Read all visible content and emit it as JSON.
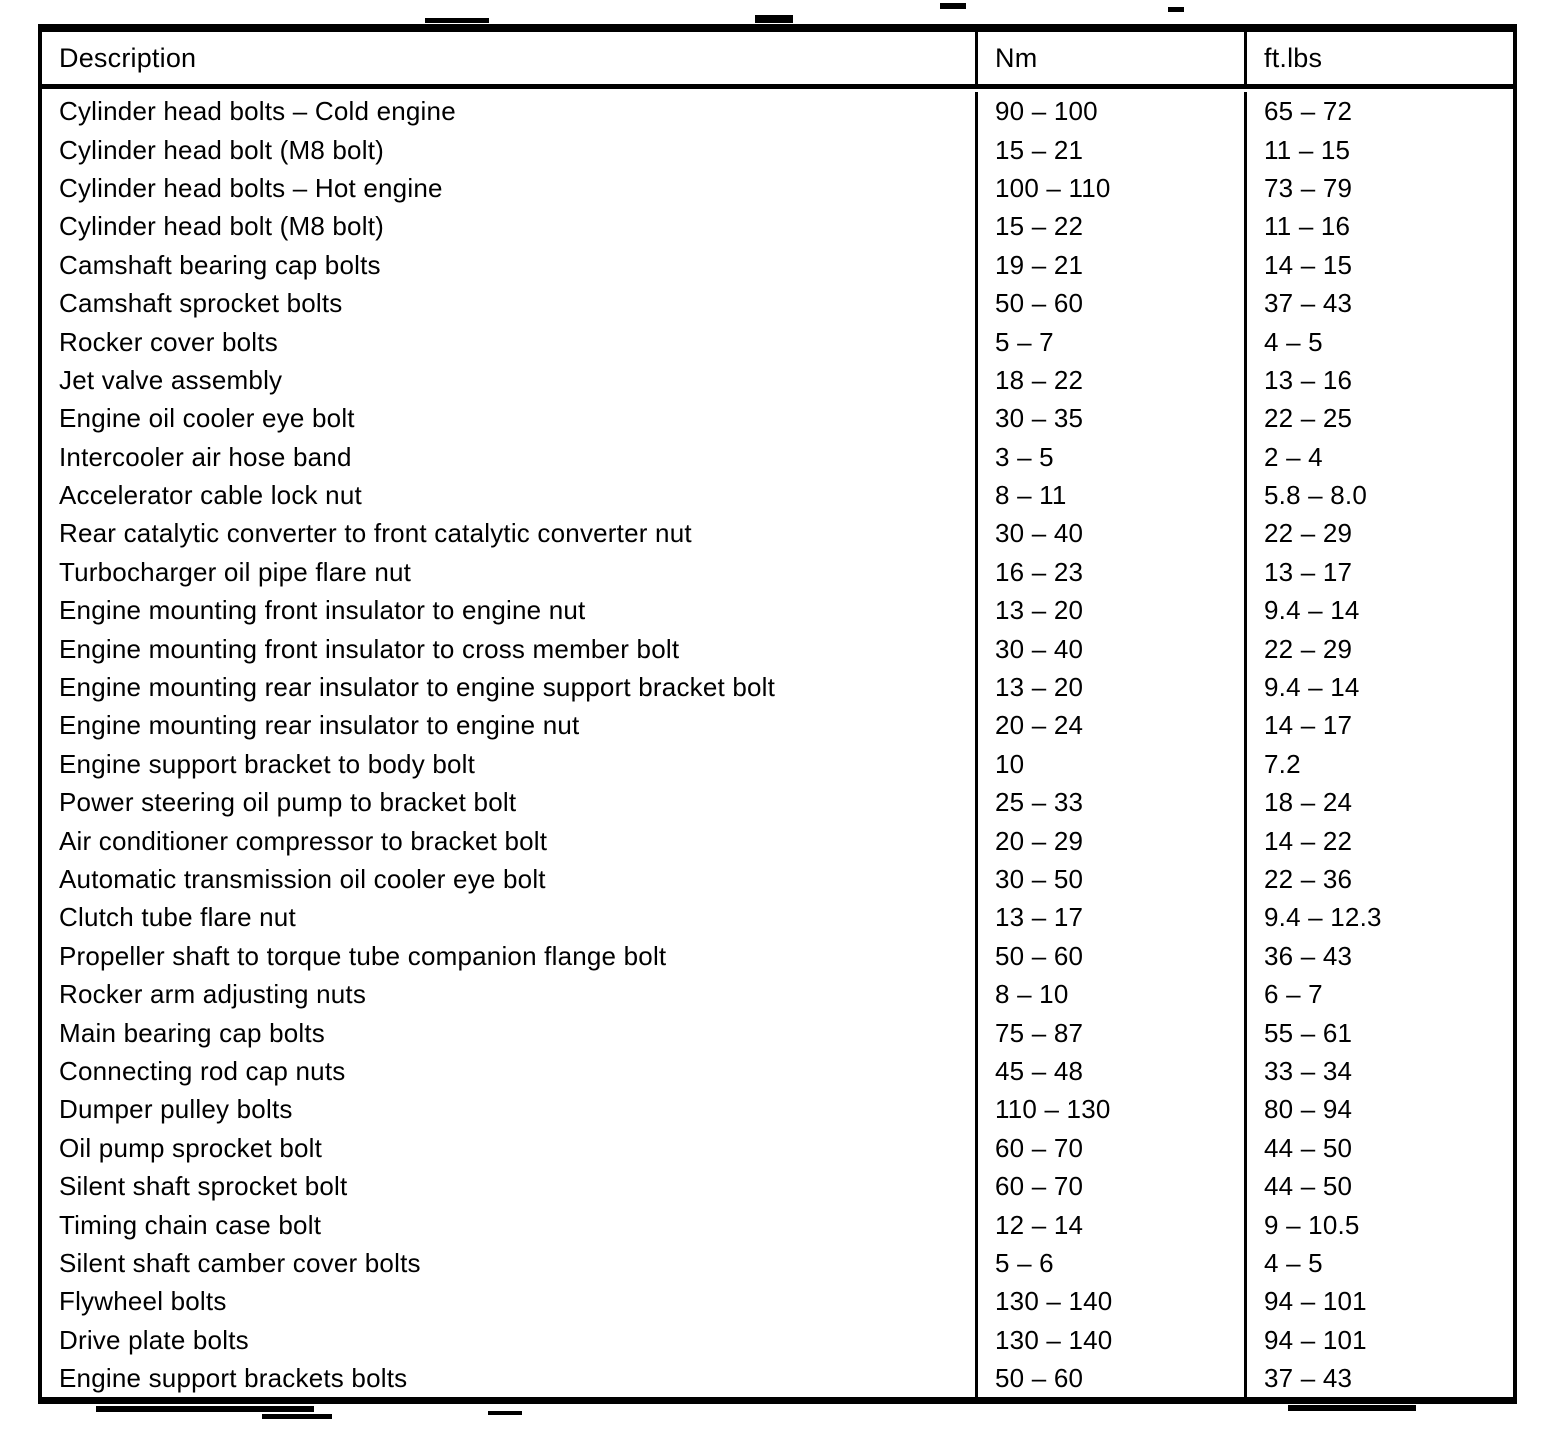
{
  "table": {
    "headers": [
      "Description",
      "Nm",
      "ft.lbs"
    ],
    "rows": [
      [
        "Cylinder head bolts – Cold engine",
        "90 – 100",
        "65 – 72"
      ],
      [
        "Cylinder head bolt (M8 bolt)",
        "15 – 21",
        "11 – 15"
      ],
      [
        "Cylinder head bolts – Hot engine",
        "100 – 110",
        "73 – 79"
      ],
      [
        "Cylinder head bolt (M8 bolt)",
        "15 – 22",
        "11 – 16"
      ],
      [
        "Camshaft bearing cap bolts",
        "19 – 21",
        "14 – 15"
      ],
      [
        "Camshaft sprocket bolts",
        "50 – 60",
        "37 – 43"
      ],
      [
        "Rocker cover bolts",
        "5 – 7",
        "4 – 5"
      ],
      [
        "Jet valve assembly",
        "18 – 22",
        "13 – 16"
      ],
      [
        "Engine oil cooler eye bolt",
        "30 – 35",
        "22 – 25"
      ],
      [
        "Intercooler air hose band",
        "3 – 5",
        "2 – 4"
      ],
      [
        "Accelerator cable lock nut",
        "8 – 11",
        "5.8 – 8.0"
      ],
      [
        "Rear catalytic converter to front catalytic converter nut",
        "30 – 40",
        "22 – 29"
      ],
      [
        "Turbocharger oil pipe flare nut",
        "16 – 23",
        "13 – 17"
      ],
      [
        "Engine mounting front insulator to engine nut",
        "13 – 20",
        "9.4 – 14"
      ],
      [
        "Engine mounting front insulator to cross member bolt",
        "30 – 40",
        "22 – 29"
      ],
      [
        "Engine mounting rear insulator to engine support bracket bolt",
        "13 – 20",
        "9.4 – 14"
      ],
      [
        "Engine mounting rear insulator to engine nut",
        "20 – 24",
        "14 – 17"
      ],
      [
        "Engine support bracket to body bolt",
        "10",
        "7.2"
      ],
      [
        "Power steering oil pump to bracket bolt",
        "25 – 33",
        "18 – 24"
      ],
      [
        "Air conditioner compressor to bracket bolt",
        "20 – 29",
        "14 – 22"
      ],
      [
        "Automatic transmission oil cooler eye bolt",
        "30 – 50",
        "22 – 36"
      ],
      [
        "Clutch tube flare nut",
        "13 – 17",
        "9.4 – 12.3"
      ],
      [
        "Propeller shaft to torque tube companion flange bolt",
        "50 – 60",
        "36 – 43"
      ],
      [
        "Rocker arm adjusting nuts",
        "8 – 10",
        "6 – 7"
      ],
      [
        "Main bearing cap bolts",
        "75 – 87",
        "55 – 61"
      ],
      [
        "Connecting rod cap nuts",
        "45 – 48",
        "33 – 34"
      ],
      [
        "Dumper pulley bolts",
        "110 – 130",
        "80 – 94"
      ],
      [
        "Oil pump sprocket bolt",
        "60 – 70",
        "44 – 50"
      ],
      [
        "Silent shaft sprocket bolt",
        "60 – 70",
        "44 – 50"
      ],
      [
        "Timing chain case bolt",
        "12 – 14",
        "9 – 10.5"
      ],
      [
        "Silent shaft camber cover bolts",
        "5 – 6",
        "4 – 5"
      ],
      [
        "Flywheel bolts",
        "130 – 140",
        "94 – 101"
      ],
      [
        "Drive plate bolts",
        "130 – 140",
        "94 – 101"
      ],
      [
        "Engine support brackets bolts",
        "50 – 60",
        "37 – 43"
      ]
    ]
  }
}
